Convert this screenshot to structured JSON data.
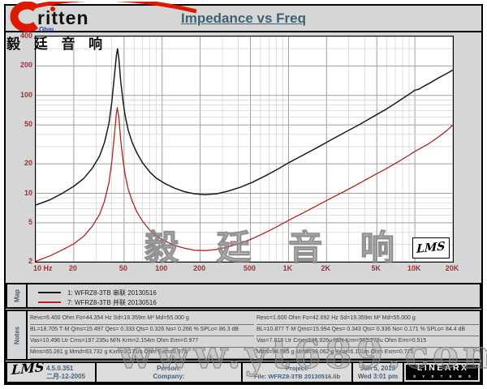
{
  "header": {
    "title": "Impedance vs Freq"
  },
  "logo": {
    "brand": "ritten",
    "chinese": "毅 廷 音 响"
  },
  "watermarks": {
    "center": "毅 廷 音 响",
    "bottom": "www.yt689.com"
  },
  "chart_data": {
    "type": "line",
    "title": "Impedance vs Freq",
    "inset_label": "LMS",
    "x_axis": {
      "label": "Hz",
      "scale": "log",
      "min": 10,
      "max": 20000,
      "tick_labels": [
        "10 Hz",
        "20",
        "50",
        "100",
        "200",
        "500",
        "1K",
        "2K",
        "5K",
        "10K",
        "20K"
      ],
      "tick_values": [
        10,
        20,
        50,
        100,
        200,
        500,
        1000,
        2000,
        5000,
        10000,
        20000
      ],
      "grid": [
        10,
        20,
        30,
        40,
        50,
        60,
        70,
        80,
        90,
        100,
        200,
        300,
        400,
        500,
        600,
        700,
        800,
        900,
        1000,
        2000,
        3000,
        4000,
        5000,
        6000,
        7000,
        8000,
        9000,
        10000,
        20000
      ]
    },
    "y_axis": {
      "label": "Ohm",
      "scale": "log",
      "min": 2,
      "max": 400,
      "tick_labels": [
        "400",
        "200",
        "100",
        "50",
        "20",
        "10",
        "5",
        "2"
      ],
      "tick_values": [
        400,
        200,
        100,
        50,
        20,
        10,
        5,
        2
      ],
      "grid": [
        2,
        3,
        4,
        5,
        6,
        7,
        8,
        9,
        10,
        20,
        30,
        40,
        50,
        60,
        70,
        80,
        90,
        100,
        200,
        300,
        400
      ]
    },
    "series": [
      {
        "name": "1: WFRZ8-3TB  串联 20130516",
        "color": "#1a1a1a",
        "points": [
          [
            10,
            7.6
          ],
          [
            13,
            8.6
          ],
          [
            16,
            9.9
          ],
          [
            20,
            11.8
          ],
          [
            24,
            14.2
          ],
          [
            28,
            18
          ],
          [
            32,
            24
          ],
          [
            35,
            33
          ],
          [
            38,
            52
          ],
          [
            40,
            85
          ],
          [
            42,
            160
          ],
          [
            43.5,
            255
          ],
          [
            44.4,
            300
          ],
          [
            45.5,
            235
          ],
          [
            47,
            140
          ],
          [
            49,
            88
          ],
          [
            51,
            62
          ],
          [
            54,
            44
          ],
          [
            58,
            33
          ],
          [
            63,
            26
          ],
          [
            70,
            20.5
          ],
          [
            80,
            16.5
          ],
          [
            90,
            14.3
          ],
          [
            105,
            12.6
          ],
          [
            125,
            11.3
          ],
          [
            150,
            10.4
          ],
          [
            180,
            9.9
          ],
          [
            220,
            9.7
          ],
          [
            270,
            9.9
          ],
          [
            330,
            10.5
          ],
          [
            420,
            11.6
          ],
          [
            520,
            13
          ],
          [
            650,
            15
          ],
          [
            820,
            17.6
          ],
          [
            1000,
            20.5
          ],
          [
            1300,
            24.5
          ],
          [
            1700,
            29.5
          ],
          [
            2200,
            35.5
          ],
          [
            2900,
            43
          ],
          [
            3700,
            51
          ],
          [
            4700,
            61
          ],
          [
            6000,
            73
          ],
          [
            7500,
            88
          ],
          [
            9000,
            103
          ],
          [
            10000,
            113
          ],
          [
            10800,
            116
          ],
          [
            11500,
            122
          ],
          [
            13000,
            133
          ],
          [
            15500,
            152
          ],
          [
            18000,
            168
          ],
          [
            20000,
            182
          ]
        ]
      },
      {
        "name": "7: WFRZ8-3TB  并联 20130516",
        "color": "#b22222",
        "points": [
          [
            10,
            2.02
          ],
          [
            13,
            2.3
          ],
          [
            16,
            2.62
          ],
          [
            20,
            3.05
          ],
          [
            24,
            3.65
          ],
          [
            28,
            4.6
          ],
          [
            32,
            6.1
          ],
          [
            35,
            8.3
          ],
          [
            38,
            13
          ],
          [
            40,
            21
          ],
          [
            42,
            40
          ],
          [
            43.5,
            66
          ],
          [
            44.2,
            75
          ],
          [
            45.5,
            59
          ],
          [
            47,
            35
          ],
          [
            49,
            22
          ],
          [
            51,
            15.5
          ],
          [
            54,
            11
          ],
          [
            58,
            8.3
          ],
          [
            63,
            6.5
          ],
          [
            70,
            5.2
          ],
          [
            80,
            4.2
          ],
          [
            90,
            3.65
          ],
          [
            105,
            3.25
          ],
          [
            125,
            2.95
          ],
          [
            150,
            2.75
          ],
          [
            180,
            2.62
          ],
          [
            220,
            2.6
          ],
          [
            270,
            2.67
          ],
          [
            330,
            2.83
          ],
          [
            420,
            3.1
          ],
          [
            520,
            3.45
          ],
          [
            650,
            3.95
          ],
          [
            820,
            4.6
          ],
          [
            1000,
            5.3
          ],
          [
            1300,
            6.3
          ],
          [
            1700,
            7.55
          ],
          [
            2200,
            9
          ],
          [
            2900,
            10.8
          ],
          [
            3700,
            12.8
          ],
          [
            4700,
            15.2
          ],
          [
            6000,
            18
          ],
          [
            7500,
            21.3
          ],
          [
            9000,
            24.5
          ],
          [
            10000,
            26.8
          ],
          [
            11500,
            29.6
          ],
          [
            13000,
            32.4
          ],
          [
            15500,
            38
          ],
          [
            18000,
            44
          ],
          [
            20000,
            50
          ]
        ]
      }
    ]
  },
  "map": {
    "label": "Map",
    "legend": [
      {
        "color": "#1a1a1a",
        "label": "1: WFRZ8-3TB  串联 20130516"
      },
      {
        "color": "#b22222",
        "label": "7: WFRZ8-3TB  并联 20130516"
      }
    ]
  },
  "notes": {
    "label": "Notes",
    "left": [
      "Revc=6.400 Ohm  Fo=44.354 Hz  Sd=19.359m M²  Md=55.000 g",
      "BL=18.705 T·M  Qms=15.497  Qes= 0.333  Qts= 0.326  No= 0.266 %  SPLo= 86.3 dB",
      "Vas=10.496 Ltr  Cms=197.235u M/N  Krm=2.154m Ohm  Erm=0.977",
      "Mms=65.281 g  Mmd=63.732 g  Kxm=3.171m Ohm  Exm=0.973"
    ],
    "right": [
      "Revc=1.600 Ohm  Fo=42.692 Hz  Sd=19.359m M²  Md=55.000 g",
      "BL=10.877 T·M  Qms=15.994  Qes= 0.343  Qts= 0.336  No= 0.171 %  SPLo= 84.4 dB",
      "Vas=7.818 Ltr  Cms=146.926u M/N  Krm=965.778u Ohm  Erm=0.915",
      "Mms=94.585 g  Mmd=93.062 g  Kxm=6.101m Ohm  Exm=0.775"
    ]
  },
  "footer": {
    "lms": "LMS",
    "version": "4.5.0.351",
    "date_cn": "二月-12-2005",
    "person_label": "Person:",
    "company_label": "Company:",
    "project_label": "Project:",
    "file": "File: WFRZ8-3TB  20130516.lib",
    "date": "Jun  5, 2013",
    "time": "Wed  3:01 pm",
    "brand": "LINEARX",
    "brand_sub": "S Y S T E M S"
  }
}
